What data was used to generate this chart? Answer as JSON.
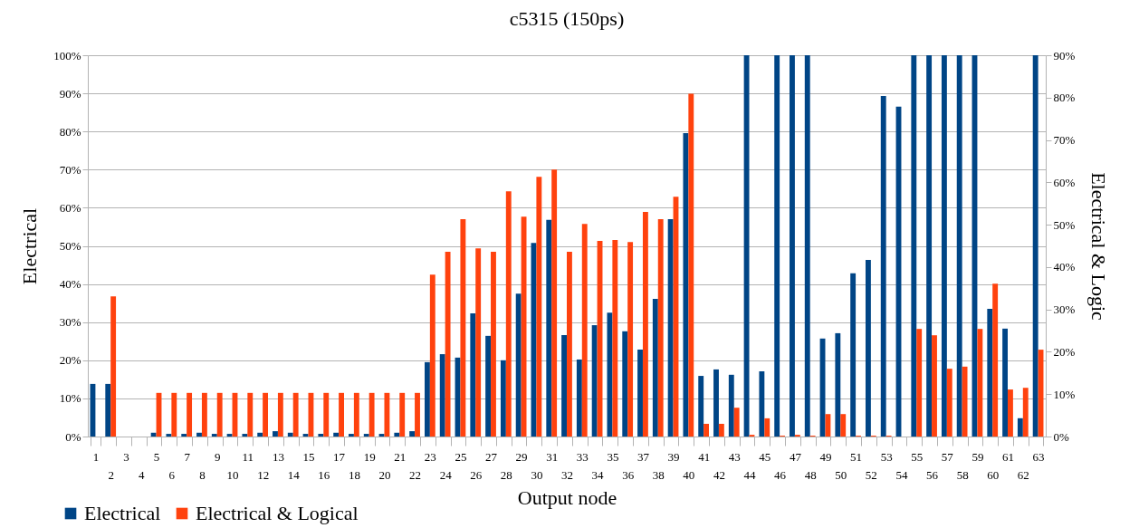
{
  "chart_data": {
    "type": "bar",
    "title": "c5315 (150ps)",
    "xlabel": "Output node",
    "ylabel": "Electrical",
    "y2label": "Electrical & Logic",
    "categories": [
      "1",
      "2",
      "3",
      "4",
      "5",
      "6",
      "7",
      "8",
      "9",
      "10",
      "11",
      "12",
      "13",
      "14",
      "15",
      "16",
      "17",
      "18",
      "19",
      "20",
      "21",
      "22",
      "23",
      "24",
      "25",
      "26",
      "27",
      "28",
      "29",
      "30",
      "31",
      "32",
      "33",
      "34",
      "35",
      "36",
      "37",
      "38",
      "39",
      "40",
      "41",
      "42",
      "43",
      "44",
      "45",
      "46",
      "47",
      "48",
      "49",
      "50",
      "51",
      "52",
      "53",
      "54",
      "55",
      "56",
      "57",
      "58",
      "59",
      "60",
      "61",
      "62",
      "63"
    ],
    "series": [
      {
        "name": "Electrical",
        "color": "#004586",
        "values": [
          13.8,
          13.8,
          0,
          0,
          1.0,
          0.7,
          0.7,
          1.0,
          0.7,
          0.7,
          0.7,
          1.0,
          1.4,
          1.0,
          0.7,
          0.7,
          1.0,
          0.7,
          0.7,
          0.7,
          1.0,
          1.4,
          19.5,
          21.6,
          20.7,
          32.3,
          26.4,
          20.0,
          37.5,
          50.8,
          56.8,
          26.6,
          20.2,
          29.2,
          32.5,
          27.6,
          22.8,
          36.1,
          57.0,
          79.6,
          15.9,
          17.6,
          16.2,
          100,
          17.1,
          100,
          100,
          100,
          25.7,
          27.1,
          42.8,
          46.3,
          89.3,
          86.5,
          100,
          100,
          100,
          100,
          100,
          33.5,
          28.3,
          4.8,
          100
        ]
      },
      {
        "name": "Electrical & Logical",
        "color": "#ff420e",
        "axis": "y2",
        "values": [
          0,
          33.1,
          0,
          0,
          10.3,
          10.3,
          10.3,
          10.3,
          10.3,
          10.3,
          10.3,
          10.3,
          10.3,
          10.3,
          10.3,
          10.3,
          10.3,
          10.3,
          10.3,
          10.3,
          10.3,
          10.3,
          38.2,
          43.6,
          51.3,
          44.4,
          43.6,
          57.9,
          51.9,
          61.3,
          63.0,
          43.6,
          50.2,
          46.2,
          46.4,
          45.9,
          53.0,
          51.3,
          56.6,
          80.9,
          3.0,
          3.0,
          6.8,
          0.4,
          4.3,
          0.2,
          0.4,
          0.2,
          5.3,
          5.3,
          0.2,
          0.2,
          0.2,
          0,
          25.4,
          23.9,
          16.0,
          16.5,
          25.4,
          36.1,
          11.1,
          11.5,
          20.5
        ]
      }
    ],
    "ylim": [
      0,
      100
    ],
    "yticks": [
      {
        "value": 0,
        "label": "0%"
      },
      {
        "value": 10,
        "label": "10%"
      },
      {
        "value": 20,
        "label": "20%"
      },
      {
        "value": 30,
        "label": "30%"
      },
      {
        "value": 40,
        "label": "40%"
      },
      {
        "value": 50,
        "label": "50%"
      },
      {
        "value": 60,
        "label": "60%"
      },
      {
        "value": 70,
        "label": "70%"
      },
      {
        "value": 80,
        "label": "80%"
      },
      {
        "value": 90,
        "label": "90%"
      },
      {
        "value": 100,
        "label": "100%"
      }
    ],
    "y2lim": [
      0,
      90
    ],
    "y2ticks": [
      {
        "value": 0,
        "label": "0%"
      },
      {
        "value": 10,
        "label": "10%"
      },
      {
        "value": 20,
        "label": "20%"
      },
      {
        "value": 30,
        "label": "30%"
      },
      {
        "value": 40,
        "label": "40%"
      },
      {
        "value": 50,
        "label": "50%"
      },
      {
        "value": 60,
        "label": "60%"
      },
      {
        "value": 70,
        "label": "70%"
      },
      {
        "value": 80,
        "label": "80%"
      },
      {
        "value": 90,
        "label": "90%"
      }
    ],
    "grid": "y",
    "legend": "bottom left"
  }
}
